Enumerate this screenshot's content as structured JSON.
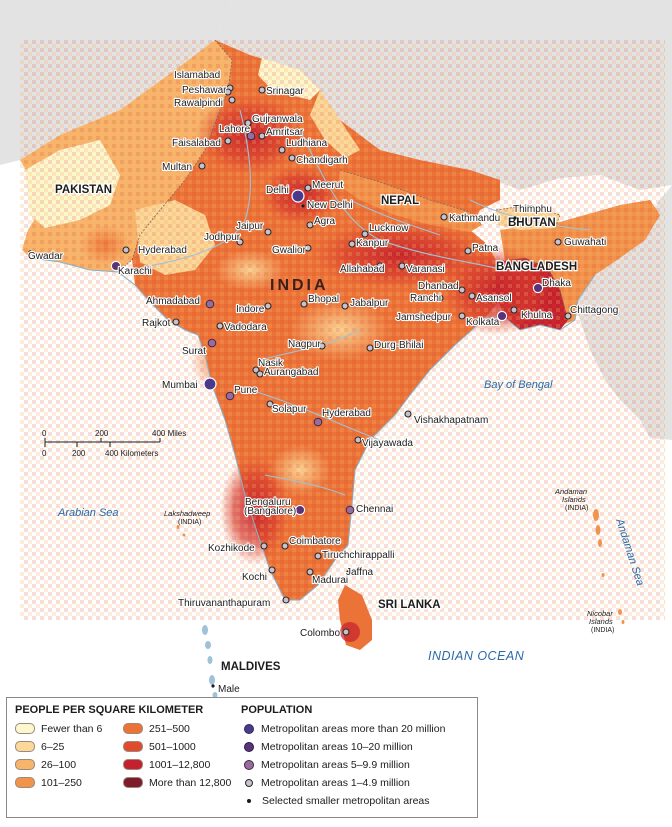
{
  "map": {
    "countries": [
      {
        "id": "pakistan",
        "label": "PAKISTAN"
      },
      {
        "id": "india",
        "label": "INDIA"
      },
      {
        "id": "nepal",
        "label": "NEPAL"
      },
      {
        "id": "bhutan",
        "label": "BHUTAN"
      },
      {
        "id": "bangladesh",
        "label": "BANGLADESH"
      },
      {
        "id": "sri-lanka",
        "label": "SRI LANKA"
      },
      {
        "id": "maldives",
        "label": "MALDIVES"
      }
    ],
    "water": {
      "arabian_sea": "Arabian Sea",
      "bay_of_bengal": "Bay of Bengal",
      "andaman_sea": "Andaman Sea",
      "indian_ocean": "INDIAN OCEAN"
    },
    "islands": {
      "lakshadweep": "Lakshadweep",
      "lakshadweep_sub": "(INDIA)",
      "andaman_1": "Andaman",
      "andaman_2": "Islands",
      "andaman_sub": "(INDIA)",
      "nicobar_1": "Nicobar",
      "nicobar_2": "Islands",
      "nicobar_sub": "(INDIA)"
    },
    "cities": [
      {
        "name": "Islamabad",
        "tier": "d"
      },
      {
        "name": "Peshawar",
        "tier": "d"
      },
      {
        "name": "Rawalpindi",
        "tier": "d"
      },
      {
        "name": "Srinagar",
        "tier": "d"
      },
      {
        "name": "Gujranwala",
        "tier": "d"
      },
      {
        "name": "Lahore",
        "tier": "c"
      },
      {
        "name": "Amritsar",
        "tier": "d"
      },
      {
        "name": "Faisalabad",
        "tier": "d"
      },
      {
        "name": "Ludhiana",
        "tier": "d"
      },
      {
        "name": "Chandigarh",
        "tier": "d"
      },
      {
        "name": "Multan",
        "tier": "d"
      },
      {
        "name": "Meerut",
        "tier": "d"
      },
      {
        "name": "Delhi",
        "tier": "a"
      },
      {
        "name": "New Delhi",
        "tier": "e"
      },
      {
        "name": "Kathmandu",
        "tier": "d"
      },
      {
        "name": "Thimphu",
        "tier": "e"
      },
      {
        "name": "Jaipur",
        "tier": "d"
      },
      {
        "name": "Agra",
        "tier": "d"
      },
      {
        "name": "Lucknow",
        "tier": "d"
      },
      {
        "name": "Kanpur",
        "tier": "d"
      },
      {
        "name": "Patna",
        "tier": "d"
      },
      {
        "name": "Guwahati",
        "tier": "d"
      },
      {
        "name": "Jodhpur",
        "tier": "d"
      },
      {
        "name": "Gwalior",
        "tier": "d"
      },
      {
        "name": "Hyderabad",
        "tier": "d"
      },
      {
        "name": "Gwadar",
        "tier": "e"
      },
      {
        "name": "Karachi",
        "tier": "b"
      },
      {
        "name": "Allahabad",
        "tier": "d"
      },
      {
        "name": "Varanasi",
        "tier": "d"
      },
      {
        "name": "Dhaka",
        "tier": "b"
      },
      {
        "name": "Dhanbad",
        "tier": "d"
      },
      {
        "name": "Ranchi",
        "tier": "d"
      },
      {
        "name": "Asansol",
        "tier": "d"
      },
      {
        "name": "Ahmadabad",
        "tier": "c"
      },
      {
        "name": "Indore",
        "tier": "d"
      },
      {
        "name": "Bhopal",
        "tier": "d"
      },
      {
        "name": "Jabalpur",
        "tier": "d"
      },
      {
        "name": "Jamshedpur",
        "tier": "d"
      },
      {
        "name": "Kolkata",
        "tier": "b"
      },
      {
        "name": "Khulna",
        "tier": "d"
      },
      {
        "name": "Chittagong",
        "tier": "d"
      },
      {
        "name": "Rajkot",
        "tier": "d"
      },
      {
        "name": "Vadodara",
        "tier": "d"
      },
      {
        "name": "Surat",
        "tier": "c"
      },
      {
        "name": "Nagpur",
        "tier": "d"
      },
      {
        "name": "Durg-Bhilai",
        "tier": "d"
      },
      {
        "name": "Nasik",
        "tier": "d"
      },
      {
        "name": "Aurangabad",
        "tier": "d"
      },
      {
        "name": "Mumbai",
        "tier": "a"
      },
      {
        "name": "Pune",
        "tier": "c"
      },
      {
        "name": "Solapur",
        "tier": "d"
      },
      {
        "name": "Hyderabad",
        "tier": "c"
      },
      {
        "name": "Vishakhapatnam",
        "tier": "d"
      },
      {
        "name": "Vijayawada",
        "tier": "d"
      },
      {
        "name": "Bengaluru",
        "tier": "b"
      },
      {
        "name": "(Bangalore)",
        "tier": "none"
      },
      {
        "name": "Chennai",
        "tier": "c"
      },
      {
        "name": "Kozhikode",
        "tier": "d"
      },
      {
        "name": "Coimbatore",
        "tier": "d"
      },
      {
        "name": "Tiruchchirappalli",
        "tier": "d"
      },
      {
        "name": "Kochi",
        "tier": "d"
      },
      {
        "name": "Madurai",
        "tier": "d"
      },
      {
        "name": "Jaffna",
        "tier": "e"
      },
      {
        "name": "Thiruvananthapuram",
        "tier": "d"
      },
      {
        "name": "Colombo",
        "tier": "d"
      },
      {
        "name": "Male",
        "tier": "e"
      }
    ],
    "scale": {
      "miles_ticks": [
        "0",
        "200",
        "400 Miles"
      ],
      "km_ticks": [
        "0",
        "200",
        "400 Kilometers"
      ]
    }
  },
  "legend": {
    "density_title": "PEOPLE PER SQUARE KILOMETER",
    "density_classes": [
      {
        "label": "Fewer than 6",
        "color": "#fdf7cf"
      },
      {
        "label": "6–25",
        "color": "#fbd89a"
      },
      {
        "label": "26–100",
        "color": "#f7b46a"
      },
      {
        "label": "101–250",
        "color": "#f2934c"
      },
      {
        "label": "251–500",
        "color": "#ec7338"
      },
      {
        "label": "501–1000",
        "color": "#df4b2e"
      },
      {
        "label": "1001–12,800",
        "color": "#c4202e"
      },
      {
        "label": "More than 12,800",
        "color": "#7e1c2c"
      }
    ],
    "population_title": "POPULATION",
    "population_classes": [
      {
        "label": "Metropolitan areas more than 20 million",
        "color": "#4b3a8c"
      },
      {
        "label": "Metropolitan areas 10–20 million",
        "color": "#5a3378"
      },
      {
        "label": "Metropolitan areas 5–9.9 million",
        "color": "#9a6b9c"
      },
      {
        "label": "Metropolitan areas 1–4.9 million",
        "color": "#c8c2cc"
      },
      {
        "label": "Selected smaller metropolitan areas",
        "color": "#1c1c1c"
      }
    ]
  }
}
